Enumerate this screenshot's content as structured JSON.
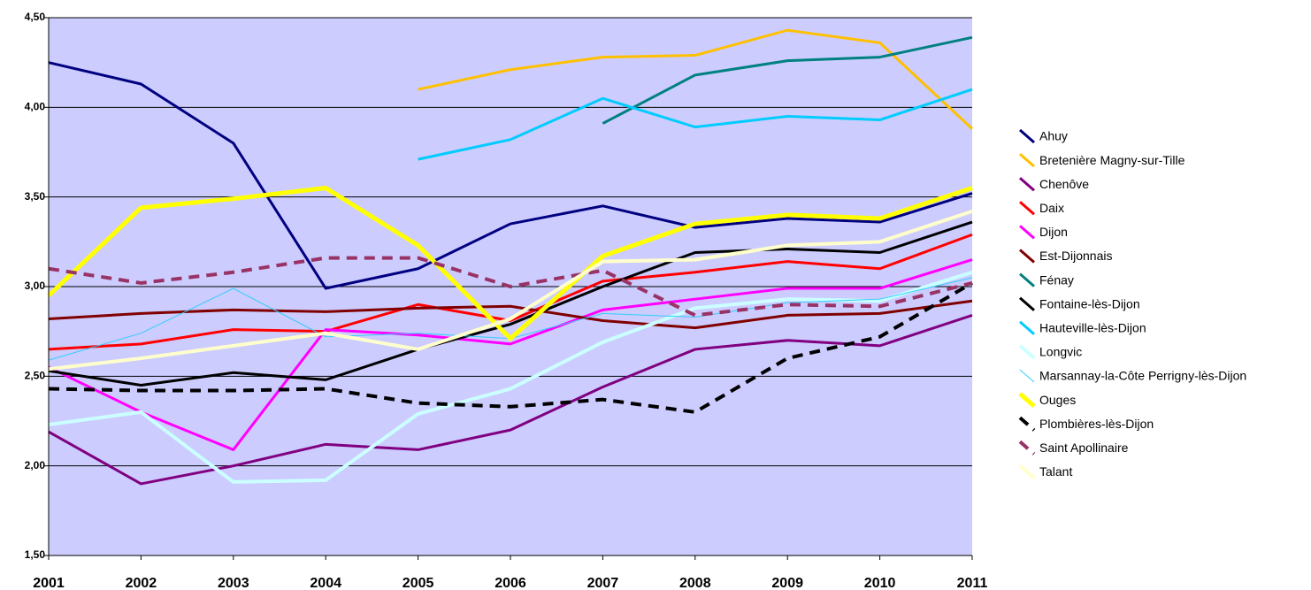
{
  "chart_data": {
    "type": "line",
    "x": [
      2001,
      2002,
      2003,
      2004,
      2005,
      2006,
      2007,
      2008,
      2009,
      2010,
      2011
    ],
    "xlim": [
      2001,
      2011
    ],
    "xticks": [
      2001,
      2002,
      2003,
      2004,
      2005,
      2006,
      2007,
      2008,
      2009,
      2010,
      2011
    ],
    "ylim": [
      1.5,
      4.5
    ],
    "yticks": [
      {
        "value": 1.5,
        "label": "1,50"
      },
      {
        "value": 2,
        "label": "2,00"
      },
      {
        "value": 2.5,
        "label": "2,50"
      },
      {
        "value": 3,
        "label": "3,00"
      },
      {
        "value": 3.5,
        "label": "3,50"
      },
      {
        "value": 4,
        "label": "4,00"
      },
      {
        "value": 4.5,
        "label": "4,50"
      }
    ],
    "grid": true,
    "background": "#ccccff",
    "legend": "right",
    "series": [
      {
        "name": "Ahuy",
        "color": "#000080",
        "line_width": 3,
        "dashed": false,
        "values": [
          4.25,
          4.13,
          3.8,
          2.99,
          3.1,
          3.35,
          3.45,
          3.33,
          3.38,
          3.36,
          3.52
        ]
      },
      {
        "name": "Bretenière Magny-sur-Tille",
        "color": "#ffc000",
        "line_width": 3,
        "dashed": false,
        "values": [
          null,
          null,
          null,
          null,
          4.1,
          4.21,
          4.28,
          4.29,
          4.43,
          4.36,
          3.88
        ]
      },
      {
        "name": "Chenôve",
        "color": "#800080",
        "line_width": 3,
        "dashed": false,
        "values": [
          2.19,
          1.9,
          2.0,
          2.12,
          2.09,
          2.2,
          2.44,
          2.65,
          2.7,
          2.67,
          2.84
        ]
      },
      {
        "name": "Daix",
        "color": "#ff0000",
        "line_width": 3,
        "dashed": false,
        "values": [
          2.65,
          2.68,
          2.76,
          2.75,
          2.9,
          2.81,
          3.03,
          3.08,
          3.14,
          3.1,
          3.29
        ]
      },
      {
        "name": "Dijon",
        "color": "#ff00ff",
        "line_width": 3,
        "dashed": false,
        "values": [
          2.55,
          2.3,
          2.09,
          2.76,
          2.73,
          2.68,
          2.87,
          2.93,
          2.99,
          2.99,
          3.15
        ]
      },
      {
        "name": "Est-Dijonnais",
        "color": "#800000",
        "line_width": 3,
        "dashed": false,
        "values": [
          2.82,
          2.85,
          2.87,
          2.86,
          2.88,
          2.89,
          2.81,
          2.77,
          2.84,
          2.85,
          2.92
        ]
      },
      {
        "name": "Fénay",
        "color": "#008080",
        "line_width": 3,
        "dashed": false,
        "values": [
          null,
          null,
          null,
          null,
          null,
          null,
          3.91,
          4.18,
          4.26,
          4.28,
          4.39
        ]
      },
      {
        "name": "Fontaine-lès-Dijon",
        "color": "#000000",
        "line_width": 3,
        "dashed": false,
        "values": [
          2.53,
          2.45,
          2.52,
          2.48,
          2.65,
          2.79,
          3.0,
          3.19,
          3.21,
          3.19,
          3.36
        ]
      },
      {
        "name": "Hauteville-lès-Dijon",
        "color": "#00ccff",
        "line_width": 3,
        "dashed": false,
        "values": [
          null,
          null,
          null,
          null,
          3.71,
          3.82,
          4.05,
          3.89,
          3.95,
          3.93,
          4.1
        ]
      },
      {
        "name": "Longvic",
        "color": "#ccffff",
        "line_width": 4,
        "dashed": false,
        "values": [
          2.23,
          2.3,
          1.91,
          1.92,
          2.29,
          2.43,
          2.69,
          2.88,
          2.93,
          2.92,
          3.08
        ]
      },
      {
        "name": "Marsannay-la-Côte Perrigny-lès-Dijon",
        "color": "#33ccff",
        "line_width": 1,
        "dashed": false,
        "values": [
          2.59,
          2.74,
          2.99,
          2.72,
          2.74,
          2.71,
          2.85,
          2.83,
          2.91,
          2.93,
          3.05
        ]
      },
      {
        "name": "Ouges",
        "color": "#ffff00",
        "line_width": 5,
        "dashed": false,
        "values": [
          2.95,
          3.44,
          3.49,
          3.55,
          3.23,
          2.71,
          3.17,
          3.35,
          3.4,
          3.38,
          3.55
        ]
      },
      {
        "name": "Plombières-lès-Dijon",
        "color": "#000000",
        "line_width": 4,
        "dashed": true,
        "values": [
          2.43,
          2.42,
          2.42,
          2.43,
          2.35,
          2.33,
          2.37,
          2.3,
          2.6,
          2.72,
          3.02
        ]
      },
      {
        "name": "Saint Apollinaire",
        "color": "#993366",
        "line_width": 4,
        "dashed": true,
        "values": [
          3.1,
          3.02,
          3.08,
          3.16,
          3.16,
          3.0,
          3.09,
          2.84,
          2.9,
          2.89,
          3.02
        ]
      },
      {
        "name": "Talant",
        "color": "#ffffcc",
        "line_width": 4,
        "dashed": false,
        "values": [
          2.54,
          2.6,
          2.67,
          2.74,
          2.65,
          2.82,
          3.14,
          3.15,
          3.23,
          3.25,
          3.42
        ]
      }
    ]
  }
}
